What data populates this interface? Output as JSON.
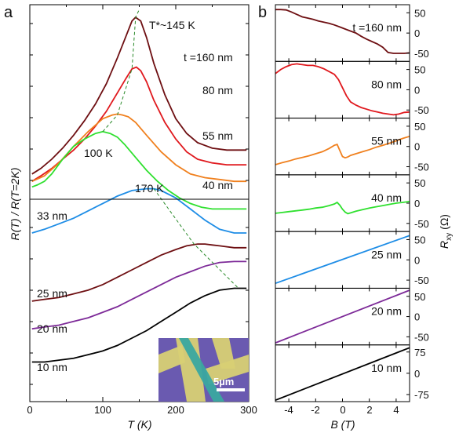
{
  "panel_a": {
    "panel_label": "a",
    "ylabel": "R(T) / R(T=2K)",
    "xlabel": "T (K)",
    "xticks": [
      "0",
      "100",
      "200",
      "300"
    ],
    "upper_labels": [
      "T*~145 K",
      "t =160 nm",
      "80 nm",
      "55 nm",
      "40 nm",
      "100 K"
    ],
    "lower_labels": [
      "170 K",
      "33 nm",
      "25 nm",
      "20 nm",
      "10 nm"
    ],
    "inset": {
      "scale_bar": "5µm"
    }
  },
  "panel_b": {
    "panel_label": "b",
    "ylabel": "R",
    "ylabel_sub": "xy",
    "ylabel_unit": "(Ω)",
    "xlabel": "B (T)",
    "xticks": [
      "-4",
      "-2",
      "0",
      "2",
      "4"
    ]
  },
  "colors": {
    "160nm": "#6e0f12",
    "80nm": "#e0191e",
    "55nm": "#f0801e",
    "40nm": "#2fe02f",
    "33nm": "#1e8de6",
    "25nm": "#6e0f12",
    "20nm": "#7d2a98",
    "10nm": "#000000",
    "peak_guide": "#2a8a2a"
  },
  "chart_data": [
    {
      "type": "line",
      "title": "",
      "xlabel": "T (K)",
      "ylabel": "R(T) / R(T=2K)",
      "xlim": [
        0,
        300
      ],
      "y_ticks_labeled": false,
      "annotations": [
        "T*~145 K",
        "100 K",
        "170 K"
      ],
      "series": [
        {
          "name": "t =160 nm",
          "color": "#6e0f12",
          "x": [
            3,
            15,
            30,
            45,
            60,
            75,
            90,
            105,
            120,
            132,
            140,
            145,
            152,
            160,
            170,
            185,
            200,
            215,
            230,
            250,
            270,
            290,
            297
          ],
          "y": [
            0.12,
            0.15,
            0.2,
            0.26,
            0.33,
            0.41,
            0.5,
            0.61,
            0.75,
            0.87,
            0.95,
            0.97,
            0.95,
            0.86,
            0.72,
            0.55,
            0.42,
            0.34,
            0.29,
            0.26,
            0.25,
            0.25,
            0.25
          ]
        },
        {
          "name": "80 nm",
          "color": "#e0191e",
          "x": [
            3,
            15,
            30,
            45,
            60,
            75,
            90,
            105,
            120,
            132,
            140,
            146,
            152,
            160,
            170,
            185,
            200,
            215,
            230,
            250,
            270,
            297
          ],
          "y": [
            0.08,
            0.11,
            0.15,
            0.2,
            0.25,
            0.31,
            0.38,
            0.46,
            0.56,
            0.64,
            0.69,
            0.7,
            0.68,
            0.62,
            0.52,
            0.4,
            0.31,
            0.24,
            0.2,
            0.18,
            0.17,
            0.17
          ]
        },
        {
          "name": "55 nm",
          "color": "#f0801e",
          "x": [
            3,
            20,
            40,
            60,
            80,
            100,
            113,
            120,
            127,
            135,
            145,
            160,
            180,
            200,
            220,
            240,
            260,
            280,
            297
          ],
          "y": [
            0.08,
            0.11,
            0.18,
            0.27,
            0.35,
            0.42,
            0.44,
            0.445,
            0.44,
            0.43,
            0.4,
            0.33,
            0.24,
            0.17,
            0.12,
            0.1,
            0.09,
            0.08,
            0.08
          ]
        },
        {
          "name": "40 nm",
          "color": "#2fe02f",
          "x": [
            3,
            10,
            20,
            30,
            45,
            60,
            75,
            90,
            100,
            110,
            120,
            130,
            145,
            160,
            175,
            190,
            205,
            220,
            235,
            250,
            260,
            270,
            280,
            297
          ],
          "y": [
            0.05,
            0.06,
            0.08,
            0.12,
            0.2,
            0.27,
            0.31,
            0.34,
            0.35,
            0.34,
            0.32,
            0.28,
            0.21,
            0.14,
            0.08,
            0.03,
            -0.01,
            -0.04,
            -0.06,
            -0.07,
            -0.07,
            -0.07,
            -0.07,
            -0.07
          ]
        },
        {
          "name": "33 nm",
          "color": "#1e8de6",
          "x": [
            3,
            20,
            40,
            60,
            80,
            100,
            120,
            140,
            160,
            170,
            180,
            200,
            220,
            240,
            260,
            280,
            297
          ],
          "y": [
            -0.2,
            -0.18,
            -0.15,
            -0.12,
            -0.08,
            -0.04,
            0.0,
            0.03,
            0.04,
            0.04,
            0.03,
            -0.01,
            -0.07,
            -0.13,
            -0.18,
            -0.2,
            -0.2
          ]
        },
        {
          "name": "25 nm",
          "color": "#6e0f12",
          "x": [
            3,
            20,
            40,
            60,
            80,
            100,
            120,
            140,
            160,
            180,
            200,
            215,
            230,
            240,
            250,
            260,
            280,
            297
          ],
          "y": [
            -0.57,
            -0.56,
            -0.55,
            -0.53,
            -0.51,
            -0.48,
            -0.44,
            -0.4,
            -0.36,
            -0.32,
            -0.29,
            -0.27,
            -0.26,
            -0.26,
            -0.265,
            -0.27,
            -0.28,
            -0.28
          ]
        },
        {
          "name": "20 nm",
          "color": "#7d2a98",
          "x": [
            3,
            20,
            40,
            60,
            80,
            100,
            120,
            140,
            160,
            180,
            200,
            220,
            240,
            260,
            280,
            297
          ],
          "y": [
            -0.72,
            -0.71,
            -0.7,
            -0.68,
            -0.66,
            -0.63,
            -0.6,
            -0.56,
            -0.52,
            -0.48,
            -0.44,
            -0.41,
            -0.38,
            -0.36,
            -0.355,
            -0.355
          ]
        },
        {
          "name": "10 nm",
          "color": "#000000",
          "x": [
            3,
            20,
            40,
            60,
            80,
            100,
            120,
            140,
            160,
            180,
            200,
            220,
            240,
            260,
            280,
            297
          ],
          "y": [
            -0.9,
            -0.9,
            -0.89,
            -0.88,
            -0.86,
            -0.84,
            -0.81,
            -0.77,
            -0.73,
            -0.68,
            -0.63,
            -0.58,
            -0.54,
            -0.51,
            -0.5,
            -0.5
          ]
        }
      ]
    },
    {
      "type": "line",
      "title": "",
      "xlabel": "B (T)",
      "ylabel": "Rxy (Ω)",
      "xlim": [
        -5,
        5
      ],
      "panels": [
        {
          "label": "t =160 nm",
          "color": "#6e0f12",
          "yticks": [
            "50",
            "0",
            "-50"
          ],
          "ylim": [
            -70,
            70
          ],
          "x": [
            -5,
            -4.6,
            -4.2,
            -3.8,
            -3.4,
            -3,
            -2.6,
            -2.2,
            -1.8,
            -1.4,
            -1,
            -0.6,
            -0.2,
            0.2,
            0.6,
            1,
            1.4,
            1.8,
            2.2,
            2.6,
            3,
            3.4,
            3.8,
            4.2,
            4.6,
            5
          ],
          "y": [
            58,
            58,
            57,
            52,
            46,
            40,
            37,
            34,
            30,
            27,
            24,
            20,
            15,
            10,
            5,
            0,
            -8,
            -15,
            -21,
            -27,
            -35,
            -48,
            -50,
            -50,
            -50,
            -49
          ]
        },
        {
          "label": "80 nm",
          "color": "#e0191e",
          "yticks": [
            "50",
            "0",
            "-50"
          ],
          "ylim": [
            -70,
            70
          ],
          "x": [
            -5,
            -4.6,
            -4.2,
            -3.8,
            -3.4,
            -3,
            -2.6,
            -2.2,
            -1.8,
            -1.4,
            -1,
            -0.6,
            -0.3,
            0,
            0.3,
            0.6,
            1,
            1.4,
            1.8,
            2.2,
            2.6,
            3,
            3.4,
            3.8,
            4.2,
            4.6,
            5
          ],
          "y": [
            40,
            50,
            57,
            62,
            64,
            62,
            60,
            60,
            57,
            52,
            45,
            38,
            25,
            5,
            -15,
            -30,
            -38,
            -44,
            -48,
            -52,
            -55,
            -58,
            -60,
            -62,
            -60,
            -56,
            -55
          ]
        },
        {
          "label": "55 nm",
          "color": "#f0801e",
          "yticks": [
            "50",
            "0",
            "-50"
          ],
          "ylim": [
            -70,
            70
          ],
          "x": [
            -5,
            -4.5,
            -4,
            -3.5,
            -3,
            -2.5,
            -2,
            -1.5,
            -1,
            -0.6,
            -0.4,
            -0.2,
            0,
            0.2,
            0.4,
            0.6,
            1,
            1.5,
            2,
            2.5,
            3,
            3.5,
            4,
            4.5,
            5
          ],
          "y": [
            -45,
            -40,
            -36,
            -31,
            -27,
            -23,
            -18,
            -13,
            -5,
            3,
            5,
            -10,
            -25,
            -28,
            -26,
            -22,
            -18,
            -13,
            -8,
            -2,
            3,
            8,
            14,
            20,
            25
          ]
        },
        {
          "label": "40 nm",
          "color": "#2fe02f",
          "yticks": [
            "50",
            "0",
            "-50"
          ],
          "ylim": [
            -70,
            70
          ],
          "x": [
            -5,
            -4.5,
            -4,
            -3.5,
            -3,
            -2.5,
            -2,
            -1.5,
            -1,
            -0.6,
            -0.4,
            -0.2,
            0,
            0.2,
            0.4,
            0.6,
            1,
            1.5,
            2,
            2.5,
            3,
            3.5,
            4,
            4.5,
            5
          ],
          "y": [
            -25,
            -23,
            -21,
            -19,
            -17,
            -15,
            -12,
            -10,
            -6,
            -2,
            2,
            -5,
            -15,
            -22,
            -26,
            -24,
            -20,
            -16,
            -12,
            -9,
            -6,
            -3,
            0,
            2,
            4
          ]
        },
        {
          "label": "25 nm",
          "color": "#1e8de6",
          "yticks": [
            "50",
            "0",
            "-50"
          ],
          "ylim": [
            -70,
            70
          ],
          "x": [
            -5,
            5
          ],
          "y": [
            -58,
            60
          ]
        },
        {
          "label": "20 nm",
          "color": "#7d2a98",
          "yticks": [
            "50",
            "0",
            "-50"
          ],
          "ylim": [
            -70,
            70
          ],
          "x": [
            -5,
            5
          ],
          "y": [
            -65,
            65
          ]
        },
        {
          "label": "10 nm",
          "color": "#000000",
          "yticks": [
            "75",
            "0",
            "-75"
          ],
          "ylim": [
            -100,
            100
          ],
          "x": [
            -5,
            5
          ],
          "y": [
            -95,
            90
          ]
        }
      ]
    }
  ]
}
